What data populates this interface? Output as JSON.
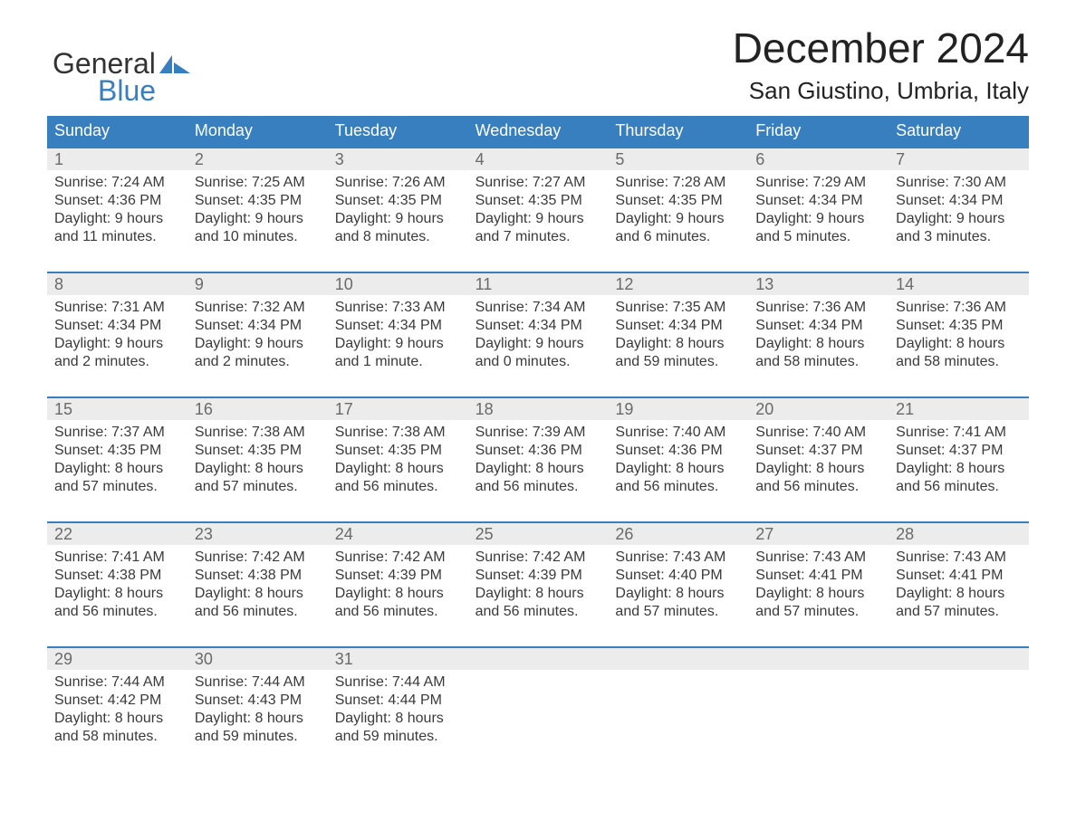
{
  "logo": {
    "line1": "General",
    "line2": "Blue",
    "brand_blue": "#377fbf"
  },
  "title": "December 2024",
  "subtitle": "San Giustino, Umbria, Italy",
  "days_of_week": [
    "Sunday",
    "Monday",
    "Tuesday",
    "Wednesday",
    "Thursday",
    "Friday",
    "Saturday"
  ],
  "colors": {
    "header_bg": "#377fbf",
    "header_text": "#ffffff",
    "row_top_line": "#377fbf",
    "daynum_bg": "#ececec",
    "daynum_text": "#6a6a6a",
    "body_text": "#3a3a3a",
    "background": "#ffffff"
  },
  "weeks": [
    [
      {
        "day": 1,
        "sunrise": "7:24 AM",
        "sunset": "4:36 PM",
        "daylight": "9 hours and 11 minutes."
      },
      {
        "day": 2,
        "sunrise": "7:25 AM",
        "sunset": "4:35 PM",
        "daylight": "9 hours and 10 minutes."
      },
      {
        "day": 3,
        "sunrise": "7:26 AM",
        "sunset": "4:35 PM",
        "daylight": "9 hours and 8 minutes."
      },
      {
        "day": 4,
        "sunrise": "7:27 AM",
        "sunset": "4:35 PM",
        "daylight": "9 hours and 7 minutes."
      },
      {
        "day": 5,
        "sunrise": "7:28 AM",
        "sunset": "4:35 PM",
        "daylight": "9 hours and 6 minutes."
      },
      {
        "day": 6,
        "sunrise": "7:29 AM",
        "sunset": "4:34 PM",
        "daylight": "9 hours and 5 minutes."
      },
      {
        "day": 7,
        "sunrise": "7:30 AM",
        "sunset": "4:34 PM",
        "daylight": "9 hours and 3 minutes."
      }
    ],
    [
      {
        "day": 8,
        "sunrise": "7:31 AM",
        "sunset": "4:34 PM",
        "daylight": "9 hours and 2 minutes."
      },
      {
        "day": 9,
        "sunrise": "7:32 AM",
        "sunset": "4:34 PM",
        "daylight": "9 hours and 2 minutes."
      },
      {
        "day": 10,
        "sunrise": "7:33 AM",
        "sunset": "4:34 PM",
        "daylight": "9 hours and 1 minute."
      },
      {
        "day": 11,
        "sunrise": "7:34 AM",
        "sunset": "4:34 PM",
        "daylight": "9 hours and 0 minutes."
      },
      {
        "day": 12,
        "sunrise": "7:35 AM",
        "sunset": "4:34 PM",
        "daylight": "8 hours and 59 minutes."
      },
      {
        "day": 13,
        "sunrise": "7:36 AM",
        "sunset": "4:34 PM",
        "daylight": "8 hours and 58 minutes."
      },
      {
        "day": 14,
        "sunrise": "7:36 AM",
        "sunset": "4:35 PM",
        "daylight": "8 hours and 58 minutes."
      }
    ],
    [
      {
        "day": 15,
        "sunrise": "7:37 AM",
        "sunset": "4:35 PM",
        "daylight": "8 hours and 57 minutes."
      },
      {
        "day": 16,
        "sunrise": "7:38 AM",
        "sunset": "4:35 PM",
        "daylight": "8 hours and 57 minutes."
      },
      {
        "day": 17,
        "sunrise": "7:38 AM",
        "sunset": "4:35 PM",
        "daylight": "8 hours and 56 minutes."
      },
      {
        "day": 18,
        "sunrise": "7:39 AM",
        "sunset": "4:36 PM",
        "daylight": "8 hours and 56 minutes."
      },
      {
        "day": 19,
        "sunrise": "7:40 AM",
        "sunset": "4:36 PM",
        "daylight": "8 hours and 56 minutes."
      },
      {
        "day": 20,
        "sunrise": "7:40 AM",
        "sunset": "4:37 PM",
        "daylight": "8 hours and 56 minutes."
      },
      {
        "day": 21,
        "sunrise": "7:41 AM",
        "sunset": "4:37 PM",
        "daylight": "8 hours and 56 minutes."
      }
    ],
    [
      {
        "day": 22,
        "sunrise": "7:41 AM",
        "sunset": "4:38 PM",
        "daylight": "8 hours and 56 minutes."
      },
      {
        "day": 23,
        "sunrise": "7:42 AM",
        "sunset": "4:38 PM",
        "daylight": "8 hours and 56 minutes."
      },
      {
        "day": 24,
        "sunrise": "7:42 AM",
        "sunset": "4:39 PM",
        "daylight": "8 hours and 56 minutes."
      },
      {
        "day": 25,
        "sunrise": "7:42 AM",
        "sunset": "4:39 PM",
        "daylight": "8 hours and 56 minutes."
      },
      {
        "day": 26,
        "sunrise": "7:43 AM",
        "sunset": "4:40 PM",
        "daylight": "8 hours and 57 minutes."
      },
      {
        "day": 27,
        "sunrise": "7:43 AM",
        "sunset": "4:41 PM",
        "daylight": "8 hours and 57 minutes."
      },
      {
        "day": 28,
        "sunrise": "7:43 AM",
        "sunset": "4:41 PM",
        "daylight": "8 hours and 57 minutes."
      }
    ],
    [
      {
        "day": 29,
        "sunrise": "7:44 AM",
        "sunset": "4:42 PM",
        "daylight": "8 hours and 58 minutes."
      },
      {
        "day": 30,
        "sunrise": "7:44 AM",
        "sunset": "4:43 PM",
        "daylight": "8 hours and 59 minutes."
      },
      {
        "day": 31,
        "sunrise": "7:44 AM",
        "sunset": "4:44 PM",
        "daylight": "8 hours and 59 minutes."
      },
      null,
      null,
      null,
      null
    ]
  ],
  "labels": {
    "sunrise": "Sunrise:",
    "sunset": "Sunset:",
    "daylight": "Daylight:"
  }
}
